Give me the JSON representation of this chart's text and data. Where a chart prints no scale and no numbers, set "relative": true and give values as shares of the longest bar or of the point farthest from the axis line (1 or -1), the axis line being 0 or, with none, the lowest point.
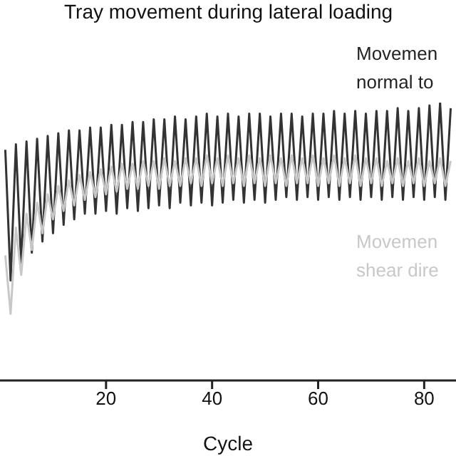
{
  "chart_data": {
    "type": "line",
    "title": "Tray movement during lateral loading",
    "xlabel": "Cycle",
    "relative": true,
    "xlim": [
      0,
      86
    ],
    "xticks": [
      20,
      40,
      60,
      80
    ],
    "x": [
      1,
      2,
      3,
      4,
      5,
      6,
      7,
      8,
      9,
      10,
      11,
      12,
      13,
      14,
      15,
      16,
      17,
      18,
      19,
      20,
      21,
      22,
      23,
      24,
      25,
      26,
      27,
      28,
      29,
      30,
      31,
      32,
      33,
      34,
      35,
      36,
      37,
      38,
      39,
      40,
      41,
      42,
      43,
      44,
      45,
      46,
      47,
      48,
      49,
      50,
      51,
      52,
      53,
      54,
      55,
      56,
      57,
      58,
      59,
      60,
      61,
      62,
      63,
      64,
      65,
      66,
      67,
      68,
      69,
      70,
      71,
      72,
      73,
      74,
      75,
      76,
      77,
      78,
      79,
      80,
      81,
      82,
      83,
      84,
      85
    ],
    "series": [
      {
        "name": "Movemen normal to",
        "color": "#333333",
        "values": [
          0.83,
          0.36,
          0.85,
          0.42,
          0.86,
          0.46,
          0.87,
          0.5,
          0.88,
          0.53,
          0.89,
          0.56,
          0.9,
          0.58,
          0.9,
          0.6,
          0.91,
          0.6,
          0.91,
          0.61,
          0.92,
          0.6,
          0.92,
          0.62,
          0.93,
          0.61,
          0.93,
          0.62,
          0.94,
          0.63,
          0.94,
          0.62,
          0.95,
          0.64,
          0.94,
          0.63,
          0.95,
          0.64,
          0.96,
          0.63,
          0.95,
          0.64,
          0.96,
          0.65,
          0.95,
          0.64,
          0.96,
          0.65,
          0.96,
          0.64,
          0.95,
          0.65,
          0.96,
          0.66,
          0.96,
          0.65,
          0.95,
          0.66,
          0.96,
          0.65,
          0.96,
          0.66,
          0.97,
          0.65,
          0.96,
          0.66,
          0.97,
          0.65,
          0.96,
          0.66,
          0.97,
          0.65,
          0.97,
          0.66,
          0.98,
          0.65,
          0.97,
          0.66,
          0.98,
          0.65,
          0.99,
          0.66,
          1.0,
          0.65,
          0.98
        ]
      },
      {
        "name": "Movemen shear dire",
        "color": "#c8c8c8",
        "values": [
          0.45,
          0.24,
          0.55,
          0.38,
          0.6,
          0.47,
          0.64,
          0.53,
          0.67,
          0.58,
          0.7,
          0.61,
          0.72,
          0.63,
          0.74,
          0.65,
          0.75,
          0.66,
          0.76,
          0.67,
          0.77,
          0.68,
          0.78,
          0.69,
          0.78,
          0.69,
          0.79,
          0.7,
          0.79,
          0.69,
          0.8,
          0.7,
          0.79,
          0.7,
          0.8,
          0.71,
          0.8,
          0.7,
          0.81,
          0.71,
          0.8,
          0.7,
          0.81,
          0.71,
          0.8,
          0.7,
          0.81,
          0.71,
          0.8,
          0.7,
          0.81,
          0.71,
          0.8,
          0.7,
          0.81,
          0.71,
          0.8,
          0.71,
          0.81,
          0.7,
          0.8,
          0.71,
          0.81,
          0.7,
          0.8,
          0.71,
          0.81,
          0.7,
          0.8,
          0.71,
          0.8,
          0.7,
          0.79,
          0.71,
          0.8,
          0.7,
          0.79,
          0.71,
          0.8,
          0.7,
          0.79,
          0.71,
          0.8,
          0.7,
          0.79
        ]
      }
    ]
  }
}
